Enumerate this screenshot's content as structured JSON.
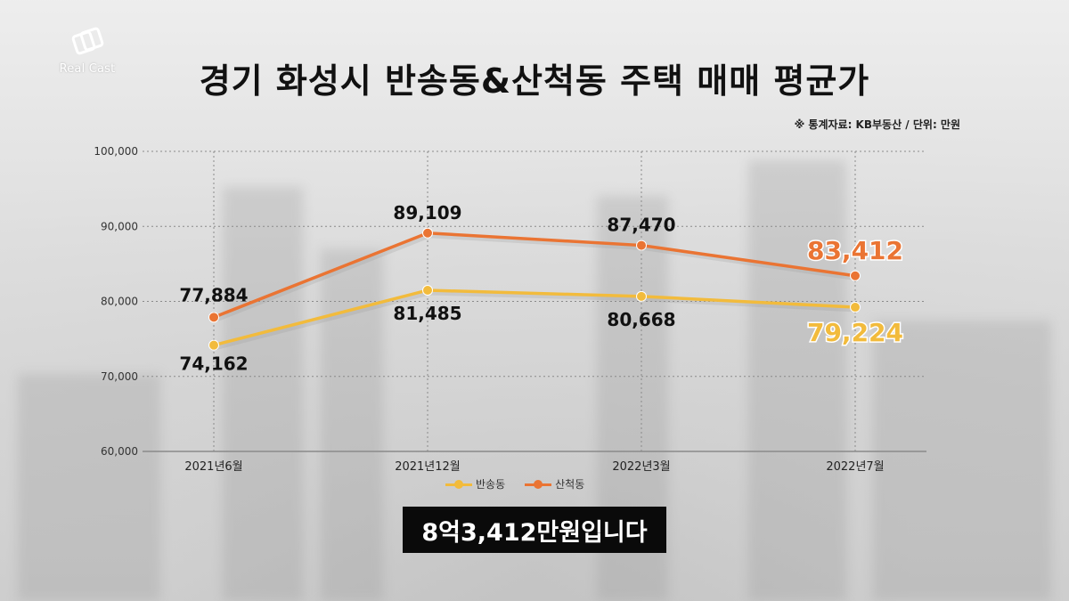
{
  "branding": {
    "logo_text": "Real Cast"
  },
  "header": {
    "title": "경기 화성시 반송동&산척동 주택 매매 평균가",
    "source_note": "※ 통계자료: KB부동산 / 단위: 만원"
  },
  "caption": "8억3,412만원입니다",
  "colors": {
    "bansong": "#f2bb3c",
    "sancheok": "#ea7433",
    "grid": "#8a8a8a"
  },
  "chart_data": {
    "type": "line",
    "categories": [
      "2021년6월",
      "2021년12월",
      "2022년3월",
      "2022년7월"
    ],
    "series": [
      {
        "name": "반송동",
        "values": [
          74162,
          81485,
          80668,
          79224
        ],
        "labels": [
          "74,162",
          "81,485",
          "80,668",
          "79,224"
        ]
      },
      {
        "name": "산척동",
        "values": [
          77884,
          89109,
          87470,
          83412
        ],
        "labels": [
          "77,884",
          "89,109",
          "87,470",
          "83,412"
        ]
      }
    ],
    "ylim": [
      60000,
      100000
    ],
    "yticks": [
      60000,
      70000,
      80000,
      90000,
      100000
    ],
    "ytick_labels": [
      "60,000",
      "70,000",
      "80,000",
      "90,000",
      "100,000"
    ],
    "grid": true,
    "legend": "bottom-center"
  }
}
